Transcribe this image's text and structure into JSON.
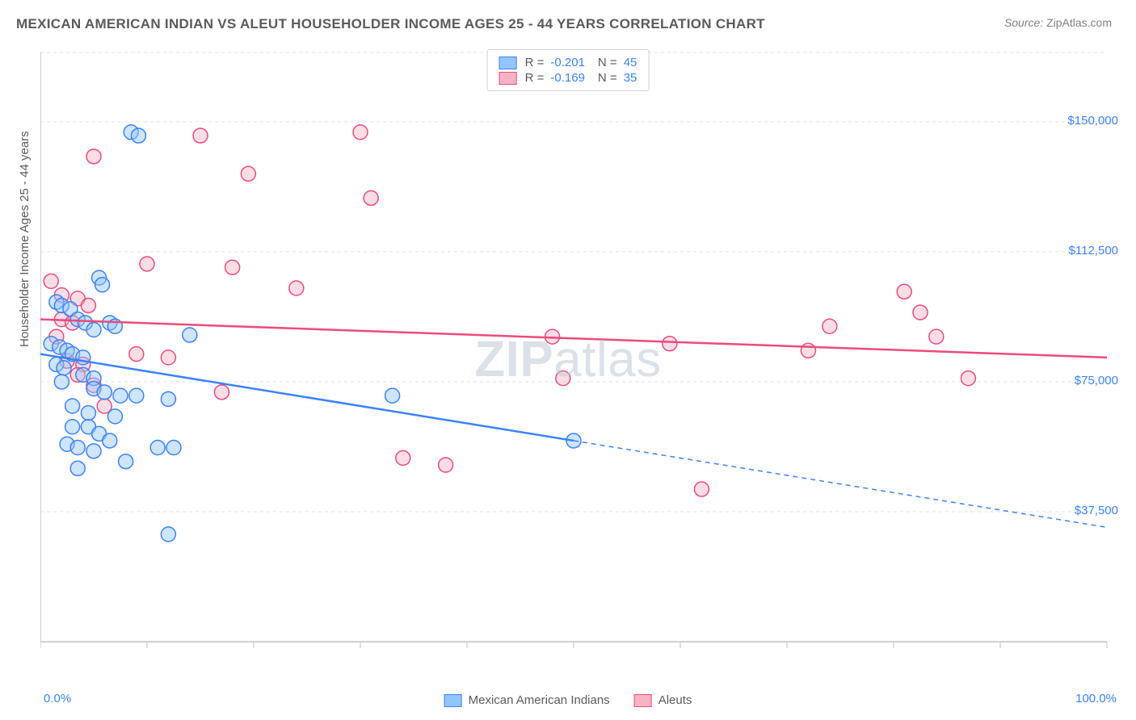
{
  "title": "MEXICAN AMERICAN INDIAN VS ALEUT HOUSEHOLDER INCOME AGES 25 - 44 YEARS CORRELATION CHART",
  "source_prefix": "Source: ",
  "source_name": "ZipAtlas.com",
  "watermark_bold": "ZIP",
  "watermark_rest": "atlas",
  "ylabel": "Householder Income Ages 25 - 44 years",
  "chart": {
    "type": "scatter_with_regression",
    "background_color": "#ffffff",
    "grid_color": "#e3e3e3",
    "axis_color": "#c0c0c0",
    "xlim": [
      0,
      100
    ],
    "ylim": [
      0,
      170000
    ],
    "x_axis_label_left": "0.0%",
    "x_axis_label_right": "100.0%",
    "x_ticks": [
      0,
      10,
      20,
      30,
      40,
      50,
      60,
      70,
      80,
      90,
      100
    ],
    "y_ticks": [
      37500,
      75000,
      112500,
      150000
    ],
    "y_tick_labels": [
      "$37,500",
      "$75,000",
      "$112,500",
      "$150,000"
    ],
    "marker_radius": 9,
    "marker_stroke_width": 1.5,
    "marker_fill_opacity": 0.45,
    "line_width": 2.5,
    "series": [
      {
        "name": "Mexican American Indians",
        "color_stroke": "#3b82f6",
        "color_fill": "#93c5fd",
        "R": "-0.201",
        "N": "45",
        "regression": {
          "x1": 0,
          "y1": 83000,
          "x2": 50,
          "y2": 58000,
          "dash_x2": 100,
          "dash_y2": 33000
        },
        "points": [
          [
            8.5,
            147000
          ],
          [
            9.2,
            146000
          ],
          [
            1.5,
            98000
          ],
          [
            2.0,
            97000
          ],
          [
            2.8,
            96000
          ],
          [
            5.5,
            105000
          ],
          [
            5.8,
            103000
          ],
          [
            3.5,
            93000
          ],
          [
            4.2,
            92000
          ],
          [
            1.0,
            86000
          ],
          [
            1.8,
            85000
          ],
          [
            2.5,
            84000
          ],
          [
            3.0,
            83000
          ],
          [
            4.0,
            82000
          ],
          [
            5.0,
            90000
          ],
          [
            6.5,
            92000
          ],
          [
            7.0,
            91000
          ],
          [
            14.0,
            88500
          ],
          [
            4.0,
            77000
          ],
          [
            5.0,
            76000
          ],
          [
            2.0,
            75000
          ],
          [
            5.0,
            73000
          ],
          [
            6.0,
            72000
          ],
          [
            7.5,
            71000
          ],
          [
            9.0,
            71000
          ],
          [
            12.0,
            70000
          ],
          [
            3.0,
            68000
          ],
          [
            4.5,
            66000
          ],
          [
            7.0,
            65000
          ],
          [
            3.0,
            62000
          ],
          [
            4.5,
            62000
          ],
          [
            5.5,
            60000
          ],
          [
            6.5,
            58000
          ],
          [
            2.5,
            57000
          ],
          [
            3.5,
            56000
          ],
          [
            5.0,
            55000
          ],
          [
            11.0,
            56000
          ],
          [
            12.5,
            56000
          ],
          [
            8.0,
            52000
          ],
          [
            3.5,
            50000
          ],
          [
            33.0,
            71000
          ],
          [
            50.0,
            58000
          ],
          [
            12.0,
            31000
          ],
          [
            1.5,
            80000
          ],
          [
            2.2,
            79000
          ]
        ]
      },
      {
        "name": "Aleuts",
        "color_stroke": "#ec4b7a",
        "color_fill": "#f7b4c7",
        "R": "-0.169",
        "N": "35",
        "regression": {
          "x1": 0,
          "y1": 93000,
          "x2": 100,
          "y2": 82000
        },
        "points": [
          [
            5.0,
            140000
          ],
          [
            15.0,
            146000
          ],
          [
            19.5,
            135000
          ],
          [
            30.0,
            147000
          ],
          [
            31.0,
            128000
          ],
          [
            18.0,
            108000
          ],
          [
            10.0,
            109000
          ],
          [
            24.0,
            102000
          ],
          [
            1.0,
            104000
          ],
          [
            2.0,
            100000
          ],
          [
            3.5,
            99000
          ],
          [
            4.5,
            97000
          ],
          [
            2.0,
            93000
          ],
          [
            3.0,
            92000
          ],
          [
            1.5,
            88000
          ],
          [
            9.0,
            83000
          ],
          [
            2.5,
            81000
          ],
          [
            4.0,
            80000
          ],
          [
            3.5,
            77000
          ],
          [
            5.0,
            74000
          ],
          [
            17.0,
            72000
          ],
          [
            6.0,
            68000
          ],
          [
            12.0,
            82000
          ],
          [
            34.0,
            53000
          ],
          [
            38.0,
            51000
          ],
          [
            48.0,
            88000
          ],
          [
            49.0,
            76000
          ],
          [
            59.0,
            86000
          ],
          [
            62.0,
            44000
          ],
          [
            72.0,
            84000
          ],
          [
            74.0,
            91000
          ],
          [
            81.0,
            101000
          ],
          [
            82.5,
            95000
          ],
          [
            87.0,
            76000
          ],
          [
            84.0,
            88000
          ]
        ]
      }
    ]
  }
}
